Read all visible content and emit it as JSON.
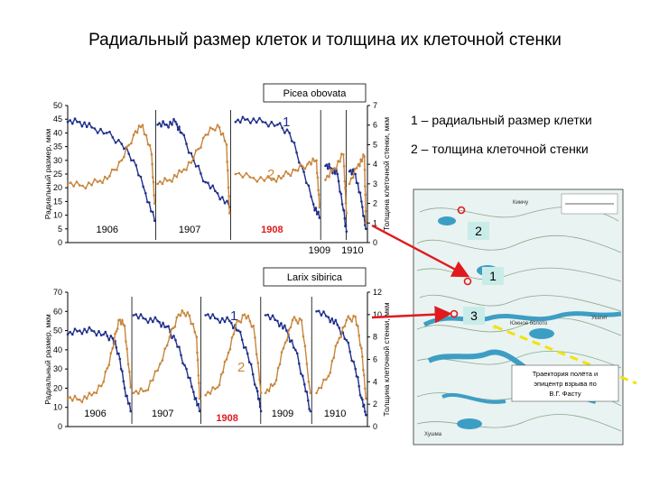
{
  "title": "Радиальный размер клеток и толщина их клеточной стенки",
  "legend": {
    "item1": "1 – радиальный размер клетки",
    "item2": "2 – толщина клеточной стенки"
  },
  "colors": {
    "series1": "#1f2f8a",
    "series2": "#c8863c",
    "arrow": "#e0191e",
    "trajectory": "#f2e20d",
    "map_bg": "#e9f3f1",
    "water": "#3d9ec4"
  },
  "map": {
    "labels": {
      "kimchu": "Кимчу",
      "yuzhnoe": "Южное болото",
      "ukagit": "Укагит",
      "khushma": "Хушма"
    },
    "caption": "Траектория полёта и эпицентр взрыва по В.Г. Фасту",
    "sites": [
      "1",
      "2",
      "3"
    ]
  },
  "chart_data": [
    {
      "type": "line",
      "title": "Picea obovata",
      "ylabel": "Радиальный размер, мкм",
      "y2label": "Толщина клеточной стенки, мкм",
      "ylim": [
        0,
        50
      ],
      "y2lim": [
        0,
        7
      ],
      "yticks": [
        "0",
        "5",
        "10",
        "15",
        "20",
        "25",
        "30",
        "35",
        "40",
        "45",
        "50"
      ],
      "y2ticks": [
        "0",
        "1",
        "2",
        "3",
        "4",
        "5",
        "6",
        "7"
      ],
      "series_labels": [
        "1",
        "2"
      ],
      "years": [
        {
          "label": "1906",
          "highlight": false,
          "x0": 0,
          "x1": 0.3
        },
        {
          "label": "1907",
          "highlight": false,
          "x0": 0.3,
          "x1": 0.55
        },
        {
          "label": "1908",
          "highlight": true,
          "x0": 0.55,
          "x1": 0.85
        },
        {
          "label": "1909",
          "highlight": false,
          "x0": 0.85,
          "x1": 0.935
        },
        {
          "label": "1910",
          "highlight": false,
          "x0": 0.935,
          "x1": 1.0
        }
      ],
      "series": [
        {
          "name": "1",
          "axis": "left",
          "segments": [
            [
              [
                0,
                44
              ],
              [
                0.04,
                44
              ],
              [
                0.08,
                42
              ],
              [
                0.13,
                40
              ],
              [
                0.18,
                36
              ],
              [
                0.22,
                30
              ],
              [
                0.26,
                18
              ],
              [
                0.29,
                8
              ]
            ],
            [
              [
                0.3,
                43
              ],
              [
                0.33,
                43
              ],
              [
                0.36,
                44
              ],
              [
                0.38,
                40
              ],
              [
                0.42,
                30
              ],
              [
                0.46,
                22
              ],
              [
                0.5,
                18
              ],
              [
                0.54,
                13
              ]
            ],
            [
              [
                0.56,
                44
              ],
              [
                0.6,
                45
              ],
              [
                0.65,
                44
              ],
              [
                0.7,
                43
              ],
              [
                0.74,
                40
              ],
              [
                0.78,
                28
              ],
              [
                0.82,
                14
              ],
              [
                0.84,
                9
              ]
            ],
            [
              [
                0.86,
                28
              ],
              [
                0.88,
                27
              ],
              [
                0.9,
                25
              ],
              [
                0.92,
                12
              ],
              [
                0.93,
                4
              ]
            ],
            [
              [
                0.94,
                26
              ],
              [
                0.96,
                25
              ],
              [
                0.98,
                15
              ],
              [
                0.995,
                5
              ]
            ]
          ]
        },
        {
          "name": "2",
          "axis": "right",
          "segments": [
            [
              [
                0,
                3.0
              ],
              [
                0.05,
                2.9
              ],
              [
                0.1,
                3.1
              ],
              [
                0.14,
                3.4
              ],
              [
                0.18,
                4.2
              ],
              [
                0.22,
                5.5
              ],
              [
                0.25,
                6.0
              ],
              [
                0.28,
                4.5
              ],
              [
                0.29,
                2.0
              ]
            ],
            [
              [
                0.3,
                3.0
              ],
              [
                0.34,
                3.2
              ],
              [
                0.38,
                3.6
              ],
              [
                0.42,
                4.3
              ],
              [
                0.46,
                5.5
              ],
              [
                0.5,
                6.0
              ],
              [
                0.53,
                5.0
              ],
              [
                0.54,
                1.5
              ]
            ],
            [
              [
                0.56,
                3.5
              ],
              [
                0.62,
                3.3
              ],
              [
                0.68,
                3.2
              ],
              [
                0.72,
                3.4
              ],
              [
                0.76,
                3.7
              ],
              [
                0.8,
                4.0
              ],
              [
                0.83,
                4.2
              ],
              [
                0.84,
                1.8
              ]
            ],
            [
              [
                0.86,
                3.2
              ],
              [
                0.89,
                3.8
              ],
              [
                0.92,
                4.5
              ],
              [
                0.93,
                1.5
              ]
            ],
            [
              [
                0.94,
                3.0
              ],
              [
                0.97,
                4.0
              ],
              [
                0.99,
                4.4
              ],
              [
                0.995,
                1.0
              ]
            ]
          ]
        }
      ]
    },
    {
      "type": "line",
      "title": "Larix sibirica",
      "ylabel": "Радиальный размер, мкм",
      "y2label": "Толщина клеточной стенки, мкм",
      "ylim": [
        0,
        70
      ],
      "y2lim": [
        0,
        12
      ],
      "yticks": [
        "0",
        "10",
        "20",
        "30",
        "40",
        "50",
        "60",
        "70"
      ],
      "y2ticks": [
        "0",
        "2",
        "4",
        "6",
        "8",
        "10",
        "12"
      ],
      "series_labels": [
        "1",
        "2"
      ],
      "years": [
        {
          "label": "1906",
          "highlight": false,
          "x0": 0,
          "x1": 0.22
        },
        {
          "label": "1907",
          "highlight": false,
          "x0": 0.22,
          "x1": 0.45
        },
        {
          "label": "1908",
          "highlight": true,
          "x0": 0.45,
          "x1": 0.65
        },
        {
          "label": "1909",
          "highlight": false,
          "x0": 0.65,
          "x1": 0.82
        },
        {
          "label": "1910",
          "highlight": false,
          "x0": 0.82,
          "x1": 1.0
        }
      ],
      "series": [
        {
          "name": "1",
          "axis": "left",
          "segments": [
            [
              [
                0,
                48
              ],
              [
                0.04,
                50
              ],
              [
                0.08,
                50
              ],
              [
                0.12,
                48
              ],
              [
                0.15,
                46
              ],
              [
                0.17,
                38
              ],
              [
                0.19,
                20
              ],
              [
                0.21,
                8
              ]
            ],
            [
              [
                0.22,
                58
              ],
              [
                0.26,
                56
              ],
              [
                0.3,
                55
              ],
              [
                0.33,
                52
              ],
              [
                0.36,
                45
              ],
              [
                0.39,
                32
              ],
              [
                0.42,
                18
              ],
              [
                0.44,
                8
              ]
            ],
            [
              [
                0.46,
                58
              ],
              [
                0.5,
                56
              ],
              [
                0.54,
                55
              ],
              [
                0.57,
                50
              ],
              [
                0.6,
                38
              ],
              [
                0.63,
                20
              ],
              [
                0.645,
                8
              ]
            ],
            [
              [
                0.66,
                58
              ],
              [
                0.7,
                55
              ],
              [
                0.73,
                50
              ],
              [
                0.76,
                40
              ],
              [
                0.79,
                22
              ],
              [
                0.81,
                8
              ]
            ],
            [
              [
                0.83,
                60
              ],
              [
                0.87,
                57
              ],
              [
                0.9,
                53
              ],
              [
                0.93,
                45
              ],
              [
                0.96,
                30
              ],
              [
                0.98,
                15
              ],
              [
                0.995,
                6
              ]
            ]
          ]
        },
        {
          "name": "2",
          "axis": "right",
          "segments": [
            [
              [
                0,
                2.5
              ],
              [
                0.04,
                2.4
              ],
              [
                0.08,
                2.8
              ],
              [
                0.12,
                4.0
              ],
              [
                0.15,
                7.0
              ],
              [
                0.17,
                9.5
              ],
              [
                0.19,
                9.0
              ],
              [
                0.21,
                3.5
              ]
            ],
            [
              [
                0.22,
                3.0
              ],
              [
                0.26,
                3.2
              ],
              [
                0.3,
                5.0
              ],
              [
                0.34,
                8.0
              ],
              [
                0.37,
                10.0
              ],
              [
                0.4,
                10.2
              ],
              [
                0.43,
                8.0
              ],
              [
                0.44,
                2.5
              ]
            ],
            [
              [
                0.46,
                2.8
              ],
              [
                0.5,
                3.5
              ],
              [
                0.53,
                6.0
              ],
              [
                0.56,
                9.0
              ],
              [
                0.59,
                10.0
              ],
              [
                0.62,
                9.0
              ],
              [
                0.645,
                3.0
              ]
            ],
            [
              [
                0.66,
                3.0
              ],
              [
                0.69,
                3.8
              ],
              [
                0.72,
                7.0
              ],
              [
                0.75,
                9.5
              ],
              [
                0.78,
                9.5
              ],
              [
                0.81,
                3.0
              ]
            ],
            [
              [
                0.83,
                3.0
              ],
              [
                0.87,
                4.5
              ],
              [
                0.9,
                7.5
              ],
              [
                0.93,
                9.5
              ],
              [
                0.96,
                9.8
              ],
              [
                0.98,
                7.0
              ],
              [
                0.995,
                2.5
              ]
            ]
          ]
        }
      ]
    }
  ]
}
